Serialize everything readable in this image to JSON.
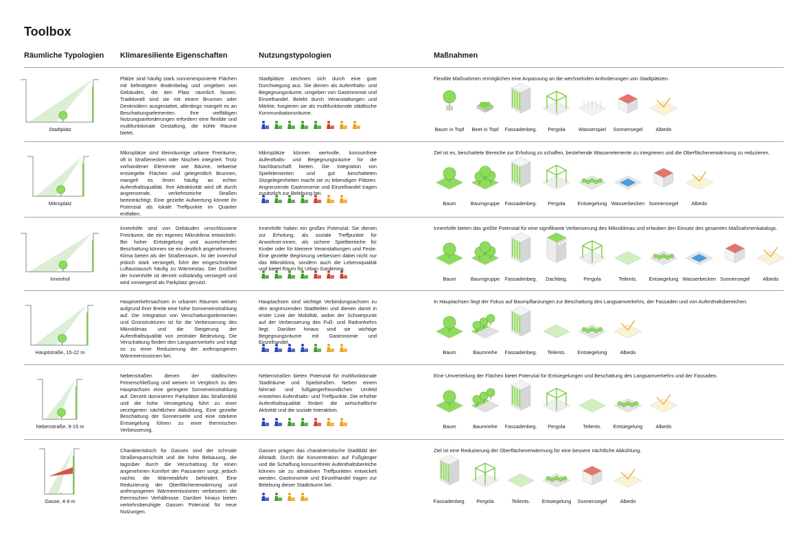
{
  "title": "Toolbox",
  "headers": [
    "Räumliche Typologien",
    "Klimaresiliente Eigenschaften",
    "Nutzungstypologien",
    "Maßnahmen"
  ],
  "rows": [
    {
      "typology": "Stadtplatz",
      "description": "Plätze sind häufig stark sonnenexponierte Flächen mit befestigtem Bodenbelag und umgeben von Gebäuden, die den Platz räumlich fassen. Traditionell sind sie mit einem Brunnen oder Denkmälern ausgestattet, allerdings mangelt es an Beschattungselementen. Ihre vielfältigen Nutzungsanforderungen erfordern eine flexible und multifunktionale Gestaltung, die kühle Räume bietet.",
      "usage": "Stadtplätze zeichnen sich durch eine gute Durchwegung aus. Sie dienen als Aufenthalts- und Begegnungsräume, umgeben von Gastronomie und Einzelhandel. Belebt durch Veranstaltungen und Märkte, fungieren sie als multifunktionale städtische Kommunikationsräume.",
      "measures_intro": "Flexible Maßnahmen ermöglichen eine Anpassung an die wechselnden Anforderungen von Stadtplätzen.",
      "measures": [
        "Baum in Topf",
        "Beet in Topf",
        "Fassadenbeg.",
        "Pergola",
        "Wasserspiel",
        "Sonnensegel",
        "Albedo"
      ]
    },
    {
      "typology": "Mikroplatz",
      "description": "Mikroplätze sind kleinräumige urbane Freiräume, oft in Straßenecken oder Nischen integriert. Trotz vorhandener Elemente wie Bäume, teilweise entsiegelte Flächen und gelegentlich Brunnen, mangelt es ihnen häufig an echter Aufenthaltsqualität. Ihre Attraktivität wird oft durch angrenzende, verkehrsreiche Straßen beeinträchtigt. Eine gezielte Aufwertung könnte ihr Potenzial als lokale Treffpunkte im Quartier entfalten.",
      "usage": "Mikroplätze können wertvolle, konsumfreie Aufenthalts- und Begegnungsräume für die Nachbarschaft bieten. Die Integration von Spielelementen und gut beschatteten Sitzgelegenheiten macht sie zu lebendigen Plätzen. Angrenzende Gastronomie und Einzelhandel tragen zusätzlich zur Belebung bei.",
      "measures_intro": "Ziel ist es, beschattete Bereiche zur Erholung zu schaffen, bestehende Wasserelemente zu integrieren und die Oberflächenerwärmung zu reduzieren.",
      "measures": [
        "Baum",
        "Baumgruppe",
        "Fassadenbeg.",
        "Pergola",
        "Entsiegelung",
        "Wasserbecken",
        "Sonnensegel",
        "Albedo"
      ]
    },
    {
      "typology": "Innenhof",
      "description": "Innenhöfe sind von Gebäuden umschlossene Freiräume, die ein eigenes Mikroklima entwickeln. Bei hoher Entsiegelung und ausreichender Beschattung können sie ein deutlich angenehmeres Klima bieten als der Straßenraum. Ist der Innenhof jedoch stark versiegelt, führt der eingeschränkte Luftaustausch häufig zu Wärmestau. Der Großteil der Innenhöfe ist derzeit vollständig versiegelt und wird vorwiegend als Parkplatz genutzt.",
      "usage": "Innenhöfe haben ein großes Potenzial: Sie dienen zur Erholung, als soziale Treffpunkte für Anwohner:innen, als sichere Spielbereiche für Kinder oder für kleinere Veranstaltungen und Feste. Eine gezielte Begrünung verbessert dabei nicht nur das Mikroklima, sondern auch die Lebensqualität und bietet Raum für Urban Gardening.",
      "measures_intro": "Innenhöfe bieten das größte Potenzial für eine signifikante Verbesserung des Mikroklimas und erlauben den Einsatz des gesamten Maßnahmenkatalogs.",
      "measures": [
        "Baum",
        "Baumgruppe",
        "Fassadenbeg.",
        "Dachbeg.",
        "Pergola",
        "Teilents.",
        "Entsiegelung",
        "Wasserbecken",
        "Sonnensegel",
        "Albedo"
      ]
    },
    {
      "typology": "Hauptstraße, 15-22 m",
      "description": "Hauptverkehrsachsen in urbanen Räumen weisen aufgrund ihrer Breite eine hohe Sonneneinstrahlung auf. Die Integration von Verschattungselementen und Grünstrukturen ist für die Verbesserung des Mikroklimas und die Steigerung der Aufenthaltsqualität von zentraler Bedeutung. Die Verschattung fördert den Langsamverkehr und trägt so zu einer Reduzierung der anthropogenen Wärmeemissionen bei.",
      "usage": "Hauptachsen sind wichtige Verbindungsachsen zu den angrenzenden Stadtteilen und dienen damit in erster Linie der Mobilität, wobei der Schwerpunkt auf der Verbesserung des Fuß- und Radverkehrs liegt. Darüber hinaus sind sie wichtige Begegnungsräume mit Gastronomie und Einzelhandel.",
      "measures_intro": "In Hauptachsen liegt der Fokus auf Baumpflanzungen zur Beschattung des Langsamverkehrs, der Fassaden und von Aufenthaltsbereichen.",
      "measures": [
        "Baum",
        "Baumreihe",
        "Fassadenbeg.",
        "Teilents.",
        "Entsiegelung",
        "Albedo"
      ]
    },
    {
      "typology": "Nebenstraße, 9-15 m",
      "description": "Nebenstraßen dienen der städtischen Feinerschließung und weisen im Vergleich zu den Hauptachsen eine geringere Sonneneinstrahlung auf. Derzeit dominieren Parkplätze das Straßenbild und die hohe Versiegelung führt zu einer verzögerten nächtlichen Abkühlung. Eine gezielte Beschattung der Sonnenseite und eine stärkere Entsiegelung führen zu einer thermischen Verbesserung.",
      "usage": "Nebenstraßen bieten Potenzial für multifunktionale Stadträume und Spielstraßen. Neben einem fahrrad- und fußgängerfreundlichen Umfeld entstehen Aufenthalts- und Treffpunkte. Die erhöhte Aufenthaltsqualität fördert die wirtschaftliche Aktivität und die soziale Interaktion.",
      "measures_intro": "Eine Umverteilung der Flächen bietet Potenzial für Entsiegelungen und Beschattung des Langsamverkehrs und der Fassaden.",
      "measures": [
        "Baum",
        "Baumreihe",
        "Fassadenbeg.",
        "Pergola",
        "Teilents.",
        "Entsiegelung",
        "Albedo"
      ]
    },
    {
      "typology": "Gasse, 4-9 m",
      "description": "Charakteristisch für Gassen sind der schmale Straßenquerschnitt und die hohe Bebauung, die tagsüber durch die Verschattung für einen angenehmen Komfort der Passanten sorgt, jedoch nachts die Wärmeabfuhr behindert. Eine Reduzierung der Oberflächenerwärmung und anthropogenen Wärmeemissionen verbessern die thermischen Verhältnisse. Darüber hinaus bieten verkehrsberuhigte Gassen Potenzial für neue Nutzungen.",
      "usage": "Gassen prägen das charakteristische Stadtbild der Altstadt. Durch die Konzentration auf Fußgänger und die Schaffung konsumfreier Aufenthaltsbereiche können sie zu attraktiven Treffpunkten entwickelt werden. Gastronomie und Einzelhandel tragen zur Belebung dieser Stadträume bei.",
      "measures_intro": "Ziel ist eine Reduzierung der Oberflächenerwärmung für eine bessere nächtliche Abkühlung.",
      "measures": [
        "Fassadenbeg.",
        "Pergola",
        "Teilents.",
        "Entsiegelung",
        "Sonnensegel",
        "Albedo"
      ]
    }
  ]
}
